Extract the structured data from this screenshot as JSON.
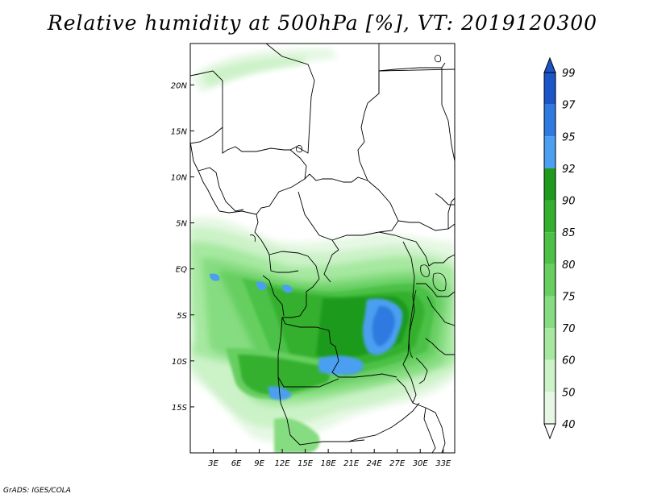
{
  "title": "Relative humidity at 500hPa [%], VT: 2019120300",
  "footer": "GrADS: IGES/COLA",
  "map": {
    "lon_range": [
      0,
      34.5
    ],
    "lat_range": [
      -20,
      24.5
    ],
    "x_ticks": [
      "3E",
      "6E",
      "9E",
      "12E",
      "15E",
      "18E",
      "21E",
      "24E",
      "27E",
      "30E",
      "33E"
    ],
    "y_ticks": [
      "20N",
      "15N",
      "10N",
      "5N",
      "EQ",
      "5S",
      "10S",
      "15S"
    ],
    "colorbar": {
      "levels": [
        40,
        50,
        60,
        70,
        75,
        80,
        85,
        90,
        92,
        95,
        97,
        99
      ],
      "colors": [
        "#ffffff",
        "#e6f8e4",
        "#ccf2c8",
        "#a6e8a0",
        "#86dc80",
        "#66cf60",
        "#4cc146",
        "#34b02e",
        "#1f9a1c",
        "#4c9ff0",
        "#2e7ae0",
        "#1b55c8",
        "#1b55c8"
      ]
    }
  }
}
